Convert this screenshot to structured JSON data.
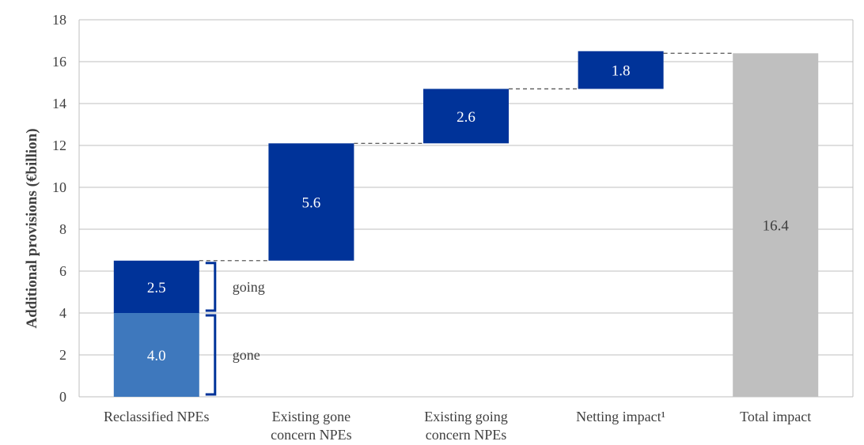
{
  "chart_data": {
    "type": "bar",
    "subtype": "waterfall",
    "ylabel": "Additional provisions (€billion)",
    "ylim": [
      0,
      18
    ],
    "yticks": [
      0,
      2,
      4,
      6,
      8,
      10,
      12,
      14,
      16,
      18
    ],
    "grid": true,
    "categories": [
      {
        "label": [
          "Reclassified NPEs"
        ]
      },
      {
        "label": [
          "Existing gone",
          "concern NPEs"
        ]
      },
      {
        "label": [
          "Existing going",
          "concern NPEs"
        ]
      },
      {
        "label": [
          "Netting impact¹"
        ]
      },
      {
        "label": [
          "Total impact"
        ]
      }
    ],
    "bars": [
      {
        "category": 0,
        "base": 0.0,
        "value": 4.0,
        "label": "4.0",
        "color": "#3e78bd",
        "label_color": "#ffffff"
      },
      {
        "category": 0,
        "base": 4.0,
        "value": 2.5,
        "label": "2.5",
        "color": "#003399",
        "label_color": "#ffffff"
      },
      {
        "category": 1,
        "base": 6.5,
        "value": 5.6,
        "label": "5.6",
        "color": "#003399",
        "label_color": "#ffffff"
      },
      {
        "category": 2,
        "base": 12.1,
        "value": 2.6,
        "label": "2.6",
        "color": "#003399",
        "label_color": "#ffffff"
      },
      {
        "category": 3,
        "base": 14.7,
        "value": 1.8,
        "label": "1.8",
        "color": "#003399",
        "label_color": "#ffffff"
      },
      {
        "category": 4,
        "base": 0.0,
        "value": 16.4,
        "label": "16.4",
        "color": "#bfbfbf",
        "label_color": "#404040"
      }
    ],
    "connectors": [
      6.5,
      12.1,
      14.7,
      16.4
    ],
    "braces": [
      {
        "from": 4.0,
        "to": 6.5,
        "label": "going"
      },
      {
        "from": 0.0,
        "to": 4.0,
        "label": "gone"
      }
    ],
    "colors": {
      "dark_blue": "#003399",
      "light_blue": "#3e78bd",
      "grey": "#bfbfbf",
      "grid": "#bfbfbf",
      "brace": "#003399"
    }
  }
}
